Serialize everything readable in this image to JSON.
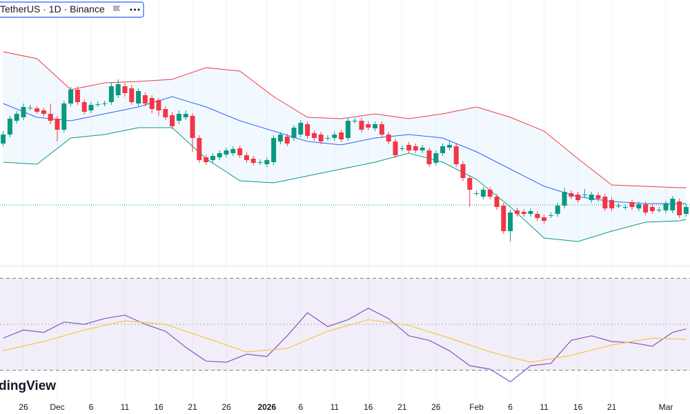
{
  "chart_data": [
    {
      "type": "candlestick",
      "title": "TetherUS · 1D · Binance",
      "watermark": "dingView",
      "categories": [
        "Nov 23",
        "Nov 24",
        "Nov 25",
        "Nov 26",
        "Nov 27",
        "Nov 28",
        "Nov 29",
        "Nov 30",
        "Dec 1",
        "Dec 2",
        "Dec 3",
        "Dec 4",
        "Dec 5",
        "Dec 6",
        "Dec 7",
        "Dec 8",
        "Dec 9",
        "Dec 10",
        "Dec 11",
        "Dec 12",
        "Dec 13",
        "Dec 14",
        "Dec 15",
        "Dec 16",
        "Dec 17",
        "Dec 18",
        "Dec 19",
        "Dec 20",
        "Dec 21",
        "Dec 22",
        "Dec 23",
        "Dec 24",
        "Dec 25",
        "Dec 26",
        "Dec 27",
        "Dec 28",
        "Dec 29",
        "Dec 30",
        "Dec 31",
        "Jan 1",
        "Jan 2",
        "Jan 3",
        "Jan 4",
        "Jan 5",
        "Jan 6",
        "Jan 7",
        "Jan 8",
        "Jan 9",
        "Jan 10",
        "Jan 11",
        "Jan 12",
        "Jan 13",
        "Jan 14",
        "Jan 15",
        "Jan 16",
        "Jan 17",
        "Jan 18",
        "Jan 19",
        "Jan 20",
        "Jan 21",
        "Jan 22",
        "Jan 23",
        "Jan 24",
        "Jan 25",
        "Jan 26",
        "Jan 27",
        "Jan 28",
        "Jan 29",
        "Jan 30",
        "Jan 31",
        "Feb 1",
        "Feb 2",
        "Feb 3",
        "Feb 4",
        "Feb 5",
        "Feb 6",
        "Feb 7",
        "Feb 8",
        "Feb 9",
        "Feb 10",
        "Feb 11",
        "Feb 12",
        "Feb 13",
        "Feb 14",
        "Feb 15",
        "Feb 16",
        "Feb 17",
        "Feb 18",
        "Feb 19",
        "Feb 20",
        "Feb 21",
        "Feb 22",
        "Feb 23",
        "Feb 24",
        "Feb 25",
        "Feb 26",
        "Feb 27",
        "Feb 28",
        "Mar 1",
        "Mar 2",
        "Mar 3",
        "Mar 4"
      ],
      "open": [
        192,
        205,
        225,
        230,
        243,
        243,
        240,
        235,
        228,
        212,
        250,
        270,
        252,
        240,
        248,
        250,
        252,
        262,
        275,
        272,
        250,
        262,
        258,
        255,
        242,
        233,
        225,
        230,
        232,
        200,
        172,
        168,
        172,
        176,
        178,
        185,
        175,
        170,
        165,
        162,
        165,
        195,
        202,
        200,
        205,
        220,
        207,
        205,
        200,
        200,
        208,
        200,
        225,
        225,
        220,
        214,
        220,
        205,
        195,
        185,
        190,
        188,
        182,
        182,
        164,
        178,
        186,
        188,
        162,
        142,
        120,
        115,
        125,
        115,
        102,
        65,
        95,
        93,
        90,
        90,
        85,
        88,
        90,
        102,
        120,
        118,
        118,
        110,
        117,
        115,
        110,
        102,
        100,
        107,
        98,
        104,
        100,
        96,
        95,
        95,
        108,
        90
      ],
      "high": [
        210,
        232,
        239,
        250,
        248,
        246,
        244,
        250,
        232,
        254,
        274,
        275,
        256,
        252,
        253,
        254,
        280,
        285,
        280,
        277,
        272,
        266,
        262,
        258,
        246,
        237,
        240,
        240,
        236,
        204,
        176,
        178,
        182,
        186,
        188,
        189,
        179,
        174,
        169,
        172,
        204,
        209,
        206,
        219,
        226,
        224,
        211,
        209,
        204,
        209,
        212,
        229,
        229,
        229,
        224,
        224,
        224,
        209,
        199,
        189,
        194,
        192,
        190,
        186,
        182,
        192,
        196,
        192,
        166,
        146,
        124,
        129,
        129,
        119,
        106,
        96,
        99,
        97,
        98,
        94,
        89,
        92,
        106,
        128,
        124,
        122,
        126,
        122,
        121,
        119,
        114,
        106,
        104,
        111,
        108,
        108,
        104,
        100,
        109,
        116,
        112,
        104
      ],
      "low": [
        188,
        201,
        221,
        226,
        240,
        235,
        231,
        220,
        195,
        208,
        246,
        248,
        234,
        236,
        245,
        246,
        248,
        258,
        260,
        248,
        246,
        246,
        236,
        232,
        226,
        213,
        220,
        226,
        180,
        164,
        161,
        164,
        168,
        172,
        174,
        171,
        164,
        160,
        161,
        158,
        161,
        191,
        188,
        196,
        201,
        199,
        196,
        191,
        196,
        196,
        194,
        196,
        221,
        208,
        211,
        210,
        201,
        191,
        171,
        181,
        178,
        178,
        178,
        158,
        160,
        174,
        182,
        158,
        138,
        100,
        116,
        111,
        111,
        96,
        61,
        50,
        86,
        86,
        86,
        80,
        76,
        84,
        86,
        98,
        111,
        106,
        114,
        106,
        108,
        94,
        94,
        98,
        96,
        96,
        94,
        88,
        90,
        92,
        91,
        91,
        84,
        86
      ],
      "close": [
        205,
        228,
        235,
        245,
        244,
        238,
        235,
        225,
        212,
        250,
        270,
        252,
        238,
        248,
        249,
        250,
        275,
        278,
        265,
        252,
        268,
        250,
        242,
        240,
        230,
        217,
        235,
        235,
        200,
        168,
        165,
        174,
        178,
        182,
        184,
        175,
        168,
        164,
        165,
        168,
        200,
        205,
        192,
        215,
        222,
        203,
        200,
        195,
        200,
        205,
        198,
        225,
        225,
        212,
        215,
        220,
        205,
        195,
        175,
        185,
        182,
        182,
        186,
        162,
        178,
        188,
        190,
        162,
        142,
        125,
        120,
        125,
        115,
        100,
        65,
        92,
        90,
        90,
        94,
        84,
        80,
        88,
        102,
        122,
        115,
        110,
        118,
        118,
        112,
        98,
        98,
        102,
        100,
        100,
        104,
        92,
        94,
        96,
        105,
        112,
        88,
        100
      ],
      "up_color": "#089981",
      "down_color": "#f23645",
      "ylim": [
        15,
        400
      ],
      "price_line": 103,
      "price_line_color": "#089981",
      "band_fill": "#2196f3",
      "overlays": [
        {
          "color": "#f23645",
          "x": [
            "Nov 23",
            "Nov 28",
            "Dec 3",
            "Dec 8",
            "Dec 13",
            "Dec 18",
            "Dec 23",
            "Dec 28",
            "Jan 2",
            "Jan 7",
            "Jan 12",
            "Jan 17",
            "Jan 22",
            "Jan 27",
            "Feb 1",
            "Feb 6",
            "Feb 11",
            "Feb 16",
            "Feb 21",
            "Feb 26",
            "Mar 3",
            "Mar 4"
          ],
          "values": [
            325,
            315,
            270,
            280,
            282,
            285,
            302,
            297,
            260,
            230,
            228,
            235,
            228,
            235,
            245,
            230,
            210,
            170,
            132,
            130,
            128,
            128
          ]
        },
        {
          "color": "#2962ff",
          "x": [
            "Nov 23",
            "Nov 28",
            "Dec 3",
            "Dec 8",
            "Dec 13",
            "Dec 18",
            "Dec 23",
            "Dec 28",
            "Jan 2",
            "Jan 7",
            "Jan 12",
            "Jan 17",
            "Jan 22",
            "Jan 27",
            "Feb 1",
            "Feb 6",
            "Feb 11",
            "Feb 16",
            "Feb 21",
            "Feb 26",
            "Mar 3",
            "Mar 4"
          ],
          "values": [
            250,
            230,
            225,
            235,
            245,
            260,
            245,
            225,
            210,
            195,
            190,
            200,
            205,
            200,
            180,
            155,
            130,
            115,
            108,
            105,
            105,
            105
          ]
        },
        {
          "color": "#089981",
          "x": [
            "Nov 23",
            "Nov 28",
            "Dec 3",
            "Dec 8",
            "Dec 13",
            "Dec 18",
            "Dec 23",
            "Dec 28",
            "Jan 2",
            "Jan 7",
            "Jan 12",
            "Jan 17",
            "Jan 22",
            "Jan 27",
            "Feb 1",
            "Feb 6",
            "Feb 11",
            "Feb 16",
            "Feb 21",
            "Feb 26",
            "Mar 3",
            "Mar 4"
          ],
          "values": [
            165,
            162,
            200,
            205,
            215,
            215,
            170,
            138,
            135,
            145,
            155,
            165,
            178,
            165,
            140,
            100,
            55,
            50,
            65,
            78,
            80,
            82
          ]
        }
      ],
      "xticks": [
        {
          "value": "Nov 26",
          "label": "26"
        },
        {
          "value": "Dec 1",
          "label": "Dec"
        },
        {
          "value": "Dec 6",
          "label": "6"
        },
        {
          "value": "Dec 11",
          "label": "11"
        },
        {
          "value": "Dec 16",
          "label": "16"
        },
        {
          "value": "Dec 21",
          "label": "21"
        },
        {
          "value": "Dec 26",
          "label": "26"
        },
        {
          "value": "Jan 1",
          "label": "2026",
          "bold": true
        },
        {
          "value": "Jan 6",
          "label": "6"
        },
        {
          "value": "Jan 11",
          "label": "11"
        },
        {
          "value": "Jan 16",
          "label": "16"
        },
        {
          "value": "Jan 21",
          "label": "21"
        },
        {
          "value": "Jan 26",
          "label": "26"
        },
        {
          "value": "Feb 1",
          "label": "Feb"
        },
        {
          "value": "Feb 6",
          "label": "6"
        },
        {
          "value": "Feb 11",
          "label": "11"
        },
        {
          "value": "Feb 16",
          "label": "16"
        },
        {
          "value": "Feb 21",
          "label": "21"
        },
        {
          "value": "Mar 1",
          "label": "Mar"
        }
      ],
      "grid": true
    },
    {
      "type": "line",
      "ylim": [
        17,
        75.5
      ],
      "upper_band": 70,
      "lower_band": 30,
      "midline": 50,
      "band_fill": "#7e57c2",
      "series": [
        {
          "color": "#7e57c2",
          "x": [
            "Nov 23",
            "Nov 26",
            "Nov 29",
            "Dec 2",
            "Dec 5",
            "Dec 8",
            "Dec 11",
            "Dec 14",
            "Dec 17",
            "Dec 20",
            "Dec 23",
            "Dec 26",
            "Dec 29",
            "Jan 1",
            "Jan 4",
            "Jan 7",
            "Jan 10",
            "Jan 13",
            "Jan 16",
            "Jan 19",
            "Jan 22",
            "Jan 25",
            "Jan 28",
            "Jan 31",
            "Feb 3",
            "Feb 6",
            "Feb 9",
            "Feb 12",
            "Feb 15",
            "Feb 18",
            "Feb 21",
            "Feb 24",
            "Feb 27",
            "Mar 2",
            "Mar 4"
          ],
          "values": [
            44,
            47.5,
            46.5,
            51,
            50,
            52.5,
            54,
            50,
            47,
            40,
            34,
            33.5,
            37,
            36,
            45,
            55,
            49,
            52,
            57,
            52.5,
            45,
            43,
            38.5,
            32,
            30.5,
            25,
            32,
            33,
            43,
            45,
            42.5,
            42,
            40.5,
            46.5,
            48
          ]
        },
        {
          "color": "#f7c548",
          "x": [
            "Nov 23",
            "Nov 29",
            "Dec 5",
            "Dec 11",
            "Dec 17",
            "Dec 23",
            "Dec 29",
            "Jan 4",
            "Jan 10",
            "Jan 16",
            "Jan 22",
            "Jan 28",
            "Feb 3",
            "Feb 9",
            "Feb 15",
            "Feb 21",
            "Feb 27",
            "Mar 4"
          ],
          "values": [
            38.6,
            42.5,
            47.5,
            51.5,
            50,
            44,
            38,
            39.5,
            47,
            52,
            49.5,
            44,
            38,
            33.5,
            36.5,
            41,
            44,
            43.5
          ]
        }
      ]
    }
  ]
}
